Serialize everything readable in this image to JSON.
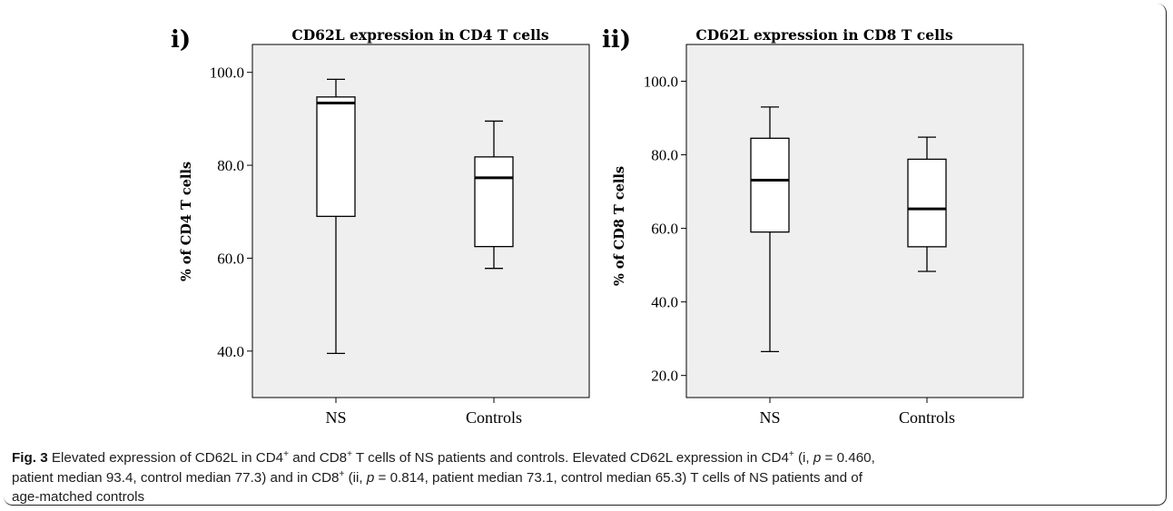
{
  "chart_data": [
    {
      "type": "box",
      "panel_label": "i)",
      "title": "CD62L expression in CD4 T cells",
      "ylabel": "% of CD4 T cells",
      "categories": [
        "NS",
        "Controls"
      ],
      "yticks": [
        "40.0",
        "60.0",
        "80.0",
        "100.0"
      ],
      "ylim": [
        30,
        106
      ],
      "boxes": [
        {
          "category": "NS",
          "min": 39.5,
          "q1": 69.0,
          "median": 93.4,
          "q3": 94.7,
          "max": 98.5
        },
        {
          "category": "Controls",
          "min": 57.8,
          "q1": 62.5,
          "median": 77.3,
          "q3": 81.8,
          "max": 89.5
        }
      ]
    },
    {
      "type": "box",
      "panel_label": "ii)",
      "title": "CD62L expression in CD8 T cells",
      "ylabel": "% of CD8 T cells",
      "categories": [
        "NS",
        "Controls"
      ],
      "yticks": [
        "20.0",
        "40.0",
        "60.0",
        "80.0",
        "100.0"
      ],
      "ylim": [
        14,
        110
      ],
      "boxes": [
        {
          "category": "NS",
          "min": 26.5,
          "q1": 59.0,
          "median": 73.1,
          "q3": 84.5,
          "max": 93.0
        },
        {
          "category": "Controls",
          "min": 48.3,
          "q1": 55.0,
          "median": 65.3,
          "q3": 78.8,
          "max": 84.8
        }
      ]
    }
  ],
  "caption": {
    "fig_label": "Fig. 3",
    "line1_a": " Elevated expression of CD62L in CD4",
    "sup_plus": "+",
    "line1_b": " and CD8",
    "line1_c": " T cells of NS patients and controls. Elevated CD62L expression in CD4",
    "line1_d": " (i, ",
    "p": "p",
    "line1_e": " = 0.460,",
    "line2_a": "patient median 93.4, control median 77.3) and in CD8",
    "line2_b": " (ii, ",
    "line2_c": " = 0.814, patient median 73.1, control median 65.3) T cells of NS patients and of",
    "line3": "age-matched controls"
  }
}
